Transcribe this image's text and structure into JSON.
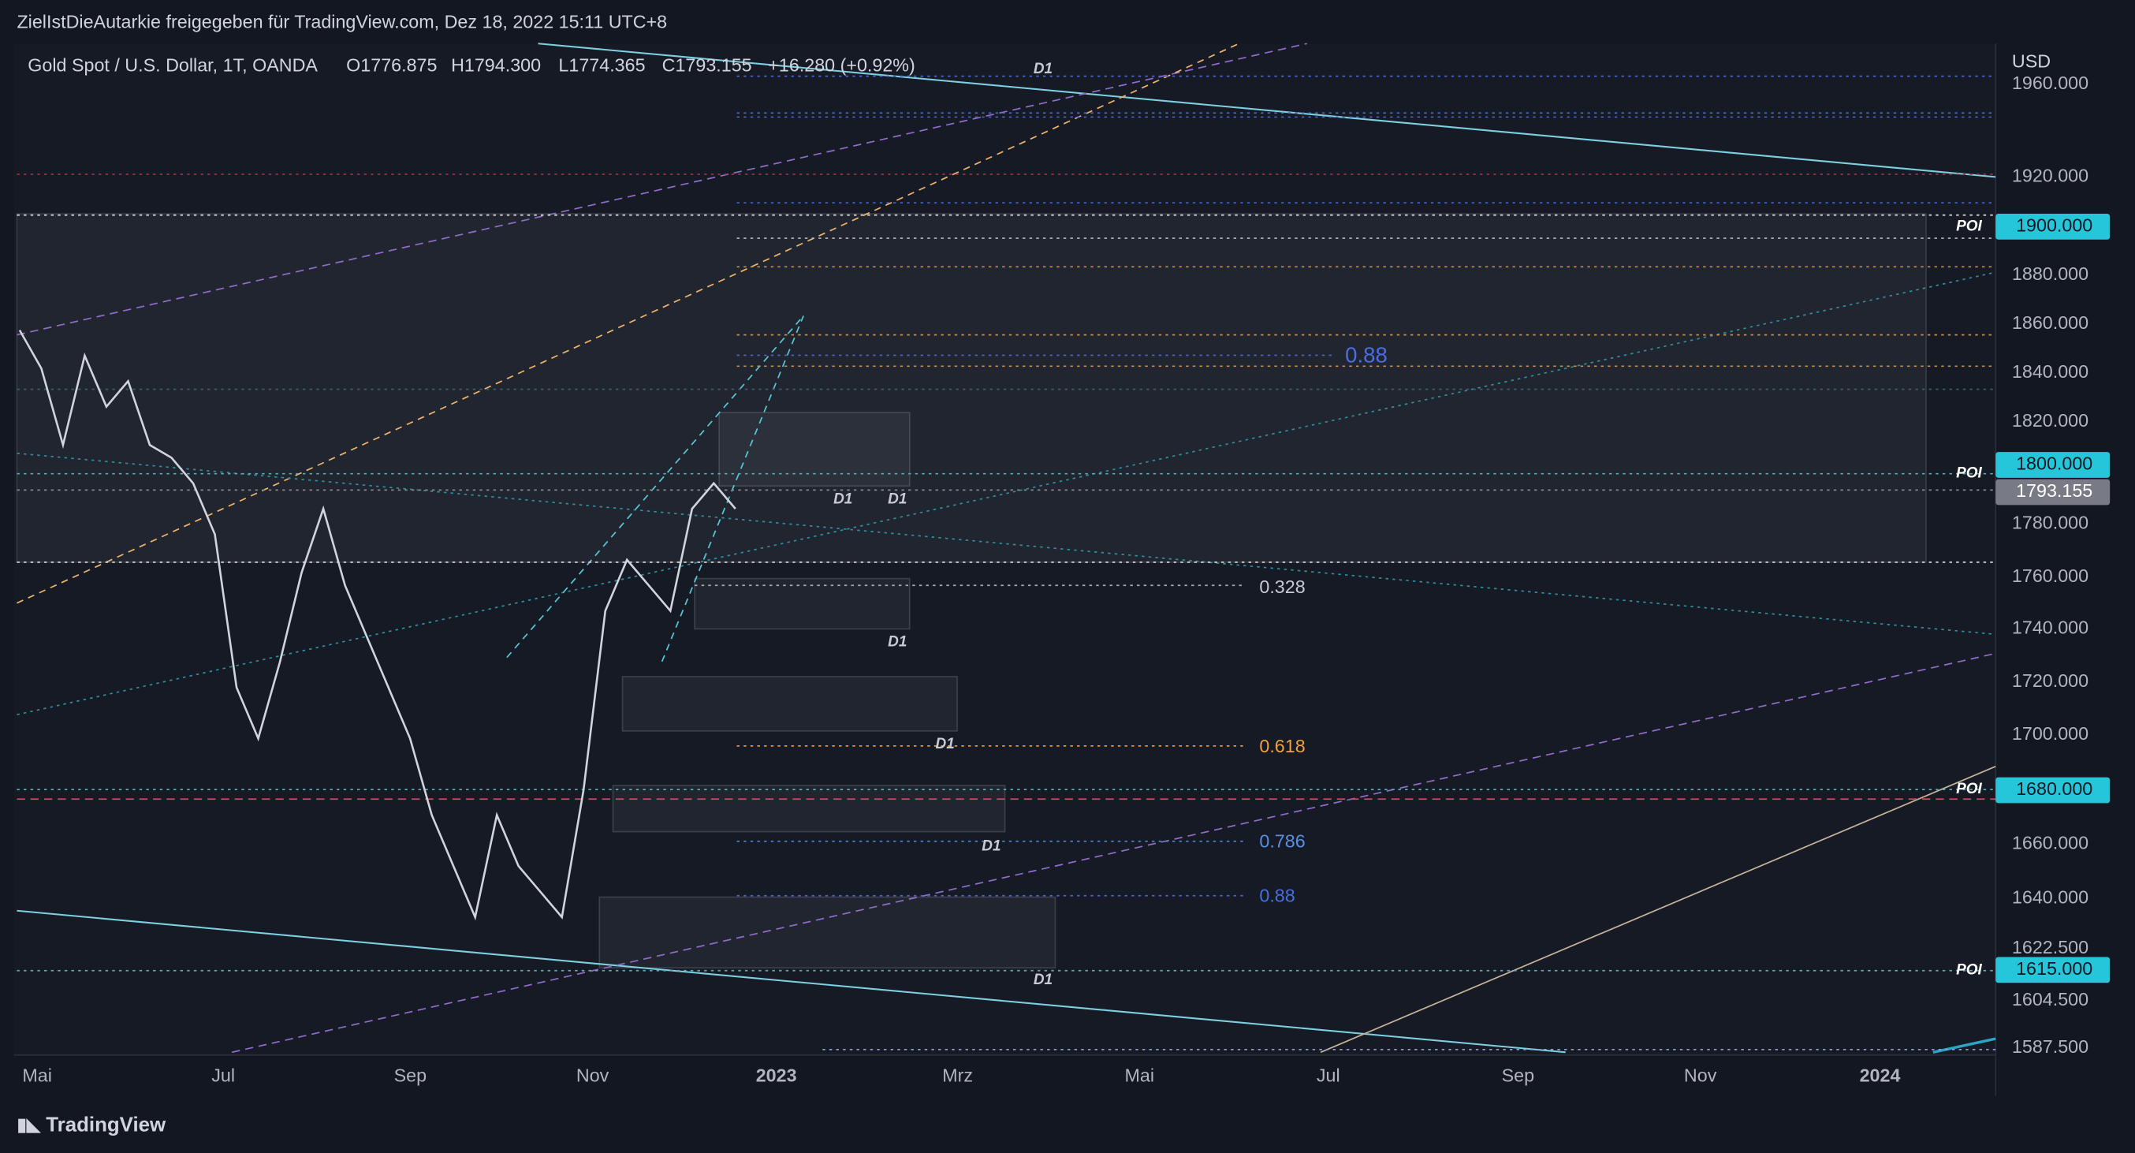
{
  "header": {
    "share": "ZielIstDieAutarkie freigegeben für TradingView.com, Dez 18, 2022 15:11 UTC+8",
    "symbol": "Gold Spot / U.S. Dollar, 1T, OANDA",
    "open": "O1776.875",
    "high": "H1794.300",
    "low": "L1774.365",
    "close": "C1793.155",
    "change": "+16.280 (+0.92%)"
  },
  "price_axis": {
    "currency": "USD",
    "labels": [
      "1960.000",
      "1920.000",
      "1880.000",
      "1860.000",
      "1840.000",
      "1820.000",
      "1780.000",
      "1760.000",
      "1740.000",
      "1720.000",
      "1700.000",
      "1660.000",
      "1640.000",
      "1622.500",
      "1604.500",
      "1587.500"
    ],
    "tags": [
      {
        "label": "1900.000",
        "note": "POI"
      },
      {
        "label": "1800.000",
        "note": "POI"
      },
      {
        "label": "1793.155"
      },
      {
        "label": "1680.000",
        "note": "POI"
      },
      {
        "label": "1615.000",
        "note": "POI"
      }
    ]
  },
  "time_axis": [
    "Mai",
    "Jul",
    "Sep",
    "Nov",
    "2023",
    "Mrz",
    "Mai",
    "Jul",
    "Sep",
    "Nov",
    "2024"
  ],
  "fib_levels": [
    "0.88",
    "0.328",
    "0.618",
    "0.786",
    "0.88"
  ],
  "zone_labels": [
    "D1",
    "D1",
    "D1",
    "D1",
    "D1",
    "D1",
    "D1"
  ],
  "price_closes": [
    1860,
    1845,
    1815,
    1850,
    1830,
    1840,
    1815,
    1810,
    1800,
    1780,
    1720,
    1700,
    1730,
    1765,
    1790,
    1760,
    1740,
    1720,
    1700,
    1670,
    1650,
    1630,
    1670,
    1650,
    1640,
    1630,
    1680,
    1750,
    1770,
    1760,
    1750,
    1790,
    1800,
    1790
  ],
  "brand": "TradingView"
}
